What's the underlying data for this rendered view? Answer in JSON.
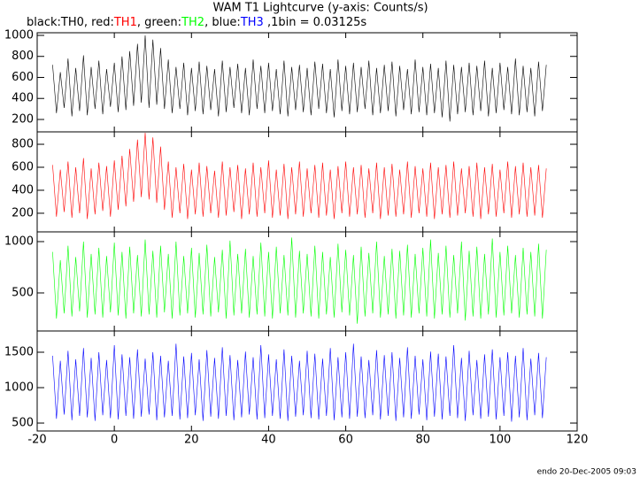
{
  "title": "WAM T1 Lightcurve (y-axis: Counts/s)",
  "subtitle_parts": [
    "black:",
    ", red:",
    ", green:",
    ", blue:",
    " ,1bin = 0.03125s"
  ],
  "footer": "endo 20-Dec-2005 09:03",
  "chart_data": [
    {
      "type": "line",
      "x": [
        -16,
        -15,
        -14,
        -13,
        -12,
        -11,
        -10,
        -9,
        -8,
        -7,
        -6,
        -5,
        -4,
        -3,
        -2,
        -1,
        0,
        1,
        2,
        3,
        4,
        5,
        6,
        7,
        8,
        9,
        10,
        11,
        12,
        13,
        14,
        15,
        16,
        17,
        18,
        19,
        20,
        21,
        22,
        23,
        24,
        25,
        26,
        27,
        28,
        29,
        30,
        31,
        32,
        33,
        34,
        35,
        36,
        37,
        38,
        39,
        40,
        41,
        42,
        43,
        44,
        45,
        46,
        47,
        48,
        49,
        50,
        51,
        52,
        53,
        54,
        55,
        56,
        57,
        58,
        59,
        60,
        61,
        62,
        63,
        64,
        65,
        66,
        67,
        68,
        69,
        70,
        71,
        72,
        73,
        74,
        75,
        76,
        77,
        78,
        79,
        80,
        81,
        82,
        83,
        84,
        85,
        86,
        87,
        88,
        89,
        90,
        91,
        92,
        93,
        94,
        95,
        96,
        97,
        98,
        99,
        100,
        101,
        102,
        103,
        104,
        105,
        106,
        107,
        108,
        109,
        110,
        111,
        112
      ],
      "series": [
        {
          "name": "TH0",
          "color": "#000000",
          "values": [
            720,
            260,
            650,
            310,
            780,
            230,
            690,
            280,
            810,
            240,
            700,
            300,
            760,
            250,
            680,
            320,
            740,
            270,
            800,
            290,
            850,
            330,
            920,
            360,
            1000,
            310,
            960,
            340,
            880,
            300,
            770,
            260,
            700,
            300,
            740,
            240,
            690,
            280,
            750,
            250,
            710,
            290,
            680,
            230,
            760,
            270,
            700,
            310,
            730,
            260,
            690,
            240,
            770,
            300,
            710,
            260,
            740,
            280,
            680,
            250,
            760,
            230,
            700,
            290,
            720,
            270,
            690,
            240,
            750,
            300,
            730,
            260,
            680,
            220,
            770,
            280,
            710,
            250,
            740,
            270,
            700,
            300,
            760,
            240,
            690,
            260,
            720,
            280,
            750,
            230,
            710,
            290,
            680,
            250,
            770,
            270,
            700,
            240,
            730,
            260,
            690,
            220,
            760,
            180,
            720,
            250,
            700,
            270,
            740,
            240,
            710,
            280,
            760,
            230,
            690,
            260,
            740,
            290,
            700,
            250,
            780,
            240,
            710,
            270,
            690,
            230,
            750,
            280,
            720
          ]
        }
      ],
      "ylim": [
        82,
        1025
      ],
      "yticks": [
        200,
        400,
        600,
        800,
        1000
      ]
    },
    {
      "type": "line",
      "x": [
        -16,
        -15,
        -14,
        -13,
        -12,
        -11,
        -10,
        -9,
        -8,
        -7,
        -6,
        -5,
        -4,
        -3,
        -2,
        -1,
        0,
        1,
        2,
        3,
        4,
        5,
        6,
        7,
        8,
        9,
        10,
        11,
        12,
        13,
        14,
        15,
        16,
        17,
        18,
        19,
        20,
        21,
        22,
        23,
        24,
        25,
        26,
        27,
        28,
        29,
        30,
        31,
        32,
        33,
        34,
        35,
        36,
        37,
        38,
        39,
        40,
        41,
        42,
        43,
        44,
        45,
        46,
        47,
        48,
        49,
        50,
        51,
        52,
        53,
        54,
        55,
        56,
        57,
        58,
        59,
        60,
        61,
        62,
        63,
        64,
        65,
        66,
        67,
        68,
        69,
        70,
        71,
        72,
        73,
        74,
        75,
        76,
        77,
        78,
        79,
        80,
        81,
        82,
        83,
        84,
        85,
        86,
        87,
        88,
        89,
        90,
        91,
        92,
        93,
        94,
        95,
        96,
        97,
        98,
        99,
        100,
        101,
        102,
        103,
        104,
        105,
        106,
        107,
        108,
        109,
        110,
        111,
        112
      ],
      "series": [
        {
          "name": "TH1",
          "color": "#ff0000",
          "values": [
            620,
            170,
            580,
            210,
            650,
            160,
            600,
            200,
            680,
            150,
            590,
            190,
            640,
            220,
            610,
            170,
            660,
            230,
            700,
            260,
            760,
            300,
            840,
            340,
            900,
            320,
            860,
            290,
            780,
            230,
            650,
            160,
            600,
            200,
            630,
            150,
            580,
            190,
            640,
            170,
            610,
            200,
            570,
            160,
            650,
            180,
            600,
            210,
            620,
            150,
            590,
            190,
            640,
            170,
            600,
            200,
            660,
            160,
            580,
            180,
            630,
            150,
            600,
            190,
            650,
            170,
            590,
            200,
            620,
            160,
            640,
            180,
            580,
            150,
            610,
            200,
            650,
            170,
            600,
            190,
            620,
            160,
            590,
            200,
            640,
            150,
            600,
            180,
            630,
            170,
            580,
            190,
            650,
            160,
            610,
            200,
            590,
            170,
            640,
            150,
            600,
            190,
            620,
            160,
            650,
            180,
            590,
            200,
            610,
            170,
            640,
            150,
            600,
            190,
            630,
            170,
            580,
            200,
            650,
            160,
            610,
            190,
            640,
            170,
            600,
            180,
            620,
            160,
            590
          ]
        }
      ],
      "ylim": [
        38,
        908
      ],
      "yticks": [
        200,
        400,
        600,
        800
      ]
    },
    {
      "type": "line",
      "x": [
        -16,
        -15,
        -14,
        -13,
        -12,
        -11,
        -10,
        -9,
        -8,
        -7,
        -6,
        -5,
        -4,
        -3,
        -2,
        -1,
        0,
        1,
        2,
        3,
        4,
        5,
        6,
        7,
        8,
        9,
        10,
        11,
        12,
        13,
        14,
        15,
        16,
        17,
        18,
        19,
        20,
        21,
        22,
        23,
        24,
        25,
        26,
        27,
        28,
        29,
        30,
        31,
        32,
        33,
        34,
        35,
        36,
        37,
        38,
        39,
        40,
        41,
        42,
        43,
        44,
        45,
        46,
        47,
        48,
        49,
        50,
        51,
        52,
        53,
        54,
        55,
        56,
        57,
        58,
        59,
        60,
        61,
        62,
        63,
        64,
        65,
        66,
        67,
        68,
        69,
        70,
        71,
        72,
        73,
        74,
        75,
        76,
        77,
        78,
        79,
        80,
        81,
        82,
        83,
        84,
        85,
        86,
        87,
        88,
        89,
        90,
        91,
        92,
        93,
        94,
        95,
        96,
        97,
        98,
        99,
        100,
        101,
        102,
        103,
        104,
        105,
        106,
        107,
        108,
        109,
        110,
        111,
        112
      ],
      "series": [
        {
          "name": "TH2",
          "color": "#00ff00",
          "values": [
            900,
            250,
            820,
            300,
            960,
            270,
            850,
            320,
            1000,
            260,
            880,
            290,
            940,
            260,
            860,
            310,
            990,
            280,
            900,
            250,
            950,
            300,
            870,
            270,
            1020,
            290,
            910,
            260,
            960,
            310,
            880,
            250,
            1000,
            280,
            860,
            300,
            940,
            260,
            890,
            290,
            970,
            270,
            850,
            310,
            920,
            250,
            1010,
            280,
            880,
            300,
            930,
            260,
            860,
            290,
            990,
            270,
            900,
            250,
            950,
            300,
            870,
            280,
            1040,
            260,
            910,
            300,
            880,
            270,
            960,
            250,
            900,
            290,
            850,
            260,
            980,
            310,
            920,
            280,
            870,
            200,
            950,
            270,
            890,
            300,
            1000,
            260,
            860,
            290,
            930,
            250,
            910,
            280,
            970,
            260,
            880,
            300,
            940,
            270,
            1020,
            250,
            890,
            290,
            960,
            260,
            870,
            300,
            1000,
            230,
            910,
            270,
            950,
            250,
            880,
            290,
            1030,
            260,
            900,
            280,
            960,
            300,
            870,
            260,
            940,
            290,
            900,
            270,
            980,
            250,
            920
          ]
        }
      ],
      "ylim": [
        129,
        1095
      ],
      "yticks": [
        500,
        1000
      ]
    },
    {
      "type": "line",
      "x": [
        -16,
        -15,
        -14,
        -13,
        -12,
        -11,
        -10,
        -9,
        -8,
        -7,
        -6,
        -5,
        -4,
        -3,
        -2,
        -1,
        0,
        1,
        2,
        3,
        4,
        5,
        6,
        7,
        8,
        9,
        10,
        11,
        12,
        13,
        14,
        15,
        16,
        17,
        18,
        19,
        20,
        21,
        22,
        23,
        24,
        25,
        26,
        27,
        28,
        29,
        30,
        31,
        32,
        33,
        34,
        35,
        36,
        37,
        38,
        39,
        40,
        41,
        42,
        43,
        44,
        45,
        46,
        47,
        48,
        49,
        50,
        51,
        52,
        53,
        54,
        55,
        56,
        57,
        58,
        59,
        60,
        61,
        62,
        63,
        64,
        65,
        66,
        67,
        68,
        69,
        70,
        71,
        72,
        73,
        74,
        75,
        76,
        77,
        78,
        79,
        80,
        81,
        82,
        83,
        84,
        85,
        86,
        87,
        88,
        89,
        90,
        91,
        92,
        93,
        94,
        95,
        96,
        97,
        98,
        99,
        100,
        101,
        102,
        103,
        104,
        105,
        106,
        107,
        108,
        109,
        110,
        111,
        112
      ],
      "series": [
        {
          "name": "TH3",
          "color": "#0000ff",
          "values": [
            1450,
            560,
            1380,
            620,
            1520,
            540,
            1400,
            600,
            1560,
            580,
            1420,
            530,
            1500,
            610,
            1390,
            570,
            1600,
            550,
            1470,
            600,
            1430,
            560,
            1540,
            590,
            1410,
            620,
            1500,
            540,
            1450,
            580,
            1380,
            600,
            1620,
            550,
            1440,
            570,
            1490,
            610,
            1400,
            530,
            1530,
            590,
            1420,
            560,
            1570,
            600,
            1460,
            540,
            1390,
            580,
            1510,
            620,
            1430,
            550,
            1600,
            570,
            1470,
            600,
            1400,
            560,
            1540,
            530,
            1450,
            590,
            1380,
            610,
            1520,
            570,
            1480,
            550,
            1410,
            600,
            1560,
            540,
            1430,
            580,
            1500,
            560,
            1620,
            590,
            1440,
            570,
            1390,
            610,
            1530,
            550,
            1460,
            600,
            1500,
            530,
            1420,
            580,
            1570,
            560,
            1450,
            620,
            1400,
            540,
            1510,
            590,
            1480,
            550,
            1440,
            600,
            1600,
            570,
            1420,
            530,
            1520,
            610,
            1390,
            560,
            1470,
            590,
            1540,
            550,
            1430,
            600,
            1500,
            520,
            1450,
            580,
            1560,
            540,
            1410,
            610,
            1490,
            570,
            1430
          ]
        }
      ],
      "ylim": [
        388,
        1800
      ],
      "yticks": [
        500,
        1000,
        1500
      ],
      "xlim": [
        -20,
        120
      ],
      "xticks": [
        -20,
        0,
        20,
        40,
        60,
        80,
        100,
        120
      ]
    }
  ]
}
